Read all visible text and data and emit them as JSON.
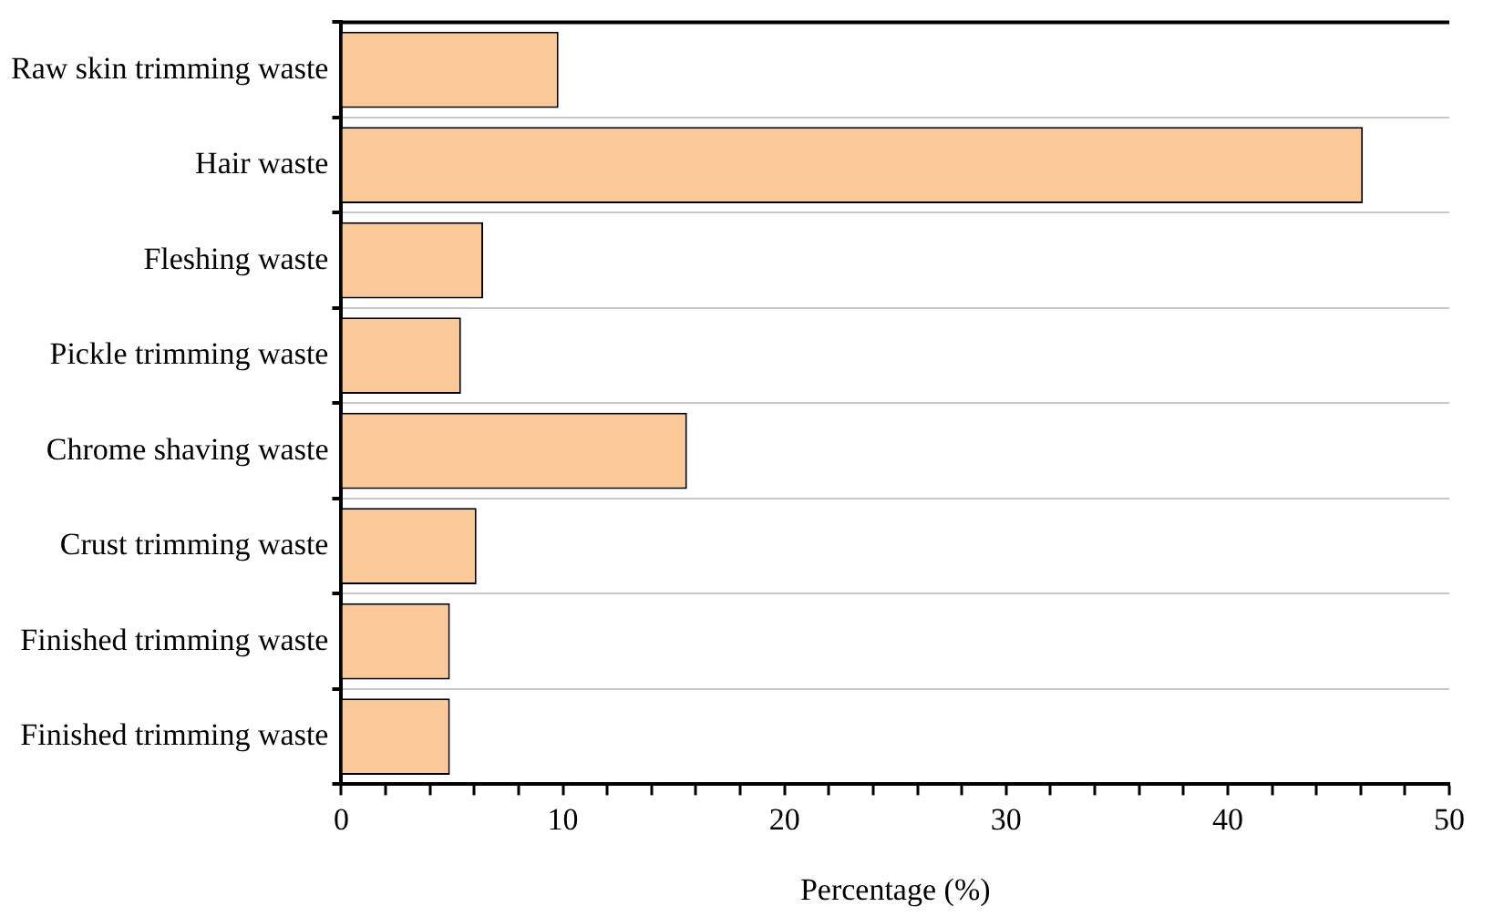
{
  "chart_data": {
    "type": "bar",
    "orientation": "horizontal",
    "xlabel": "Percentage (%)",
    "categories": [
      "Raw skin trimming waste",
      "Hair waste",
      "Fleshing waste",
      "Pickle trimming waste",
      "Chrome shaving waste",
      "Crust trimming waste",
      "Finished trimming waste",
      "Finished trimming waste"
    ],
    "values": [
      9.8,
      46.1,
      6.4,
      5.4,
      15.6,
      6.1,
      4.9,
      4.9
    ],
    "color": "#fbc897",
    "xlim": [
      0,
      50
    ],
    "xticks": [
      0,
      {
        "value": 2,
        "label": null
      },
      {
        "value": 4,
        "label": null
      },
      {
        "value": 6,
        "label": null
      },
      {
        "value": 8,
        "label": null
      },
      10,
      {
        "value": 12,
        "label": null
      },
      {
        "value": 14,
        "label": null
      },
      {
        "value": 16,
        "label": null
      },
      {
        "value": 18,
        "label": null
      },
      20,
      {
        "value": 22,
        "label": null
      },
      {
        "value": 24,
        "label": null
      },
      {
        "value": 26,
        "label": null
      },
      {
        "value": 28,
        "label": null
      },
      30,
      {
        "value": 32,
        "label": null
      },
      {
        "value": 34,
        "label": null
      },
      {
        "value": 36,
        "label": null
      },
      {
        "value": 38,
        "label": null
      },
      40,
      {
        "value": 42,
        "label": null
      },
      {
        "value": 44,
        "label": null
      },
      {
        "value": 46,
        "label": null
      },
      {
        "value": 48,
        "label": null
      },
      50
    ],
    "grid": "y",
    "legend": false
  }
}
